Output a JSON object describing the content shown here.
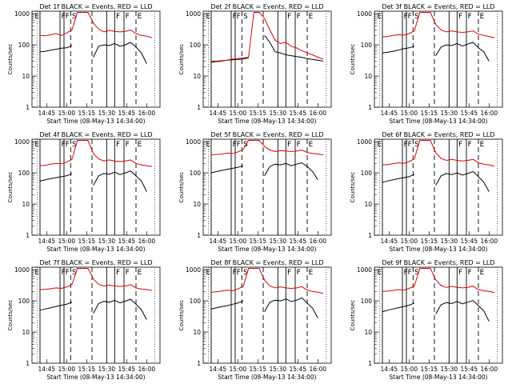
{
  "colors": {
    "events": "#000000",
    "lld": "#e00000",
    "axes": "#000000",
    "background": "#ffffff"
  },
  "shared": {
    "ylabel": "Counts/sec",
    "xlabel": "Start Time (08-May-13 14:34:00)",
    "x_ticks": [
      "14:45",
      "15:00",
      "15:15",
      "15:30",
      "15:45",
      "16:00"
    ],
    "y_ticks": [
      "1",
      "10",
      "100",
      "1000"
    ],
    "y_scale": "log",
    "ylim": [
      1,
      1200
    ],
    "xlim": [
      "14:34",
      "16:10"
    ],
    "marker_labels": [
      "E",
      "F",
      "F",
      "S",
      "F",
      "F",
      "E"
    ]
  },
  "chart_data": [
    {
      "type": "line",
      "title": "Det 1f BLACK = Events, RED = LLD",
      "x": [
        "14:40",
        "14:44",
        "14:48",
        "14:52",
        "14:56",
        "15:00",
        "15:04",
        "15:08",
        "15:12",
        "15:16",
        "15:20",
        "15:24",
        "15:28",
        "15:32",
        "15:36",
        "15:40",
        "15:44",
        "15:48",
        "15:52",
        "15:56",
        "16:00",
        "16:04"
      ],
      "series": [
        {
          "name": "BLACK = Events",
          "values": [
            60,
            62,
            68,
            72,
            78,
            80,
            95,
            null,
            null,
            null,
            40,
            90,
            100,
            95,
            110,
            90,
            100,
            120,
            85,
            55,
            25,
            null
          ]
        },
        {
          "name": "RED = LLD",
          "values": [
            200,
            195,
            210,
            230,
            200,
            240,
            300,
            1100,
            1100,
            1100,
            500,
            320,
            260,
            290,
            270,
            260,
            270,
            300,
            230,
            200,
            190,
            170
          ]
        }
      ]
    },
    {
      "type": "line",
      "title": "Det 2f BLACK = Events, RED = LLD",
      "x": [
        "14:40",
        "14:44",
        "14:48",
        "14:52",
        "14:56",
        "15:00",
        "15:04",
        "15:08",
        "15:12",
        "15:16",
        "15:20",
        "15:24",
        "15:28",
        "15:32",
        "15:36",
        "15:40",
        "15:44",
        "15:48",
        "15:52",
        "15:56",
        "16:00",
        "16:04"
      ],
      "series": [
        {
          "name": "BLACK = Events",
          "values": [
            28,
            29,
            30,
            32,
            33,
            34,
            35,
            38,
            null,
            null,
            200,
            120,
            60,
            55,
            48,
            45,
            42,
            40,
            36,
            34,
            32,
            30
          ]
        },
        {
          "name": "RED = LLD",
          "values": [
            30,
            30,
            31,
            32,
            35,
            36,
            38,
            40,
            1100,
            1100,
            700,
            300,
            140,
            110,
            120,
            90,
            80,
            65,
            55,
            48,
            40,
            35
          ]
        }
      ]
    },
    {
      "type": "line",
      "title": "Det 3f BLACK = Events, RED = LLD",
      "x": [
        "14:40",
        "14:44",
        "14:48",
        "14:52",
        "14:56",
        "15:00",
        "15:04",
        "15:08",
        "15:12",
        "15:16",
        "15:20",
        "15:24",
        "15:28",
        "15:32",
        "15:36",
        "15:40",
        "15:44",
        "15:48",
        "15:52",
        "15:56",
        "16:00",
        "16:04"
      ],
      "series": [
        {
          "name": "BLACK = Events",
          "values": [
            55,
            58,
            62,
            68,
            75,
            80,
            90,
            null,
            null,
            null,
            45,
            85,
            100,
            95,
            110,
            92,
            105,
            120,
            80,
            60,
            30,
            null
          ]
        },
        {
          "name": "RED = LLD",
          "values": [
            180,
            185,
            200,
            210,
            205,
            230,
            280,
            1100,
            1100,
            1100,
            450,
            300,
            260,
            280,
            260,
            250,
            260,
            280,
            220,
            200,
            185,
            170
          ]
        }
      ]
    },
    {
      "type": "line",
      "title": "Det 4f BLACK = Events, RED = LLD",
      "x": [
        "14:40",
        "14:44",
        "14:48",
        "14:52",
        "14:56",
        "15:00",
        "15:04",
        "15:08",
        "15:12",
        "15:16",
        "15:20",
        "15:24",
        "15:28",
        "15:32",
        "15:36",
        "15:40",
        "15:44",
        "15:48",
        "15:52",
        "15:56",
        "16:00",
        "16:04"
      ],
      "series": [
        {
          "name": "BLACK = Events",
          "values": [
            55,
            60,
            65,
            70,
            75,
            80,
            95,
            null,
            null,
            null,
            40,
            80,
            95,
            90,
            105,
            88,
            100,
            115,
            80,
            55,
            25,
            null
          ]
        },
        {
          "name": "RED = LLD",
          "values": [
            170,
            175,
            190,
            200,
            195,
            220,
            270,
            1100,
            1100,
            1100,
            420,
            280,
            240,
            260,
            240,
            230,
            240,
            260,
            200,
            180,
            170,
            160
          ]
        }
      ]
    },
    {
      "type": "line",
      "title": "Det 5f BLACK = Events, RED = LLD",
      "x": [
        "14:40",
        "14:44",
        "14:48",
        "14:52",
        "14:56",
        "15:00",
        "15:04",
        "15:08",
        "15:12",
        "15:16",
        "15:20",
        "15:24",
        "15:28",
        "15:32",
        "15:36",
        "15:40",
        "15:44",
        "15:48",
        "15:52",
        "15:56",
        "16:00",
        "16:04"
      ],
      "series": [
        {
          "name": "BLACK = Events",
          "values": [
            100,
            110,
            120,
            130,
            140,
            150,
            170,
            null,
            null,
            null,
            80,
            160,
            190,
            180,
            200,
            170,
            190,
            210,
            160,
            110,
            60,
            null
          ]
        },
        {
          "name": "RED = LLD",
          "values": [
            380,
            390,
            400,
            430,
            420,
            470,
            560,
            1100,
            1100,
            1100,
            700,
            540,
            480,
            520,
            500,
            480,
            500,
            540,
            450,
            420,
            400,
            380
          ]
        }
      ]
    },
    {
      "type": "line",
      "title": "Det 6f BLACK = Events, RED = LLD",
      "x": [
        "14:40",
        "14:44",
        "14:48",
        "14:52",
        "14:56",
        "15:00",
        "15:04",
        "15:08",
        "15:12",
        "15:16",
        "15:20",
        "15:24",
        "15:28",
        "15:32",
        "15:36",
        "15:40",
        "15:44",
        "15:48",
        "15:52",
        "15:56",
        "16:00",
        "16:04"
      ],
      "series": [
        {
          "name": "BLACK = Events",
          "values": [
            50,
            55,
            60,
            65,
            70,
            75,
            90,
            null,
            null,
            null,
            40,
            80,
            95,
            88,
            100,
            85,
            95,
            110,
            75,
            50,
            25,
            null
          ]
        },
        {
          "name": "RED = LLD",
          "values": [
            180,
            185,
            195,
            210,
            200,
            230,
            280,
            1100,
            1100,
            1100,
            440,
            290,
            250,
            270,
            250,
            240,
            250,
            270,
            210,
            190,
            180,
            165
          ]
        }
      ]
    },
    {
      "type": "line",
      "title": "Det 7f BLACK = Events, RED = LLD",
      "x": [
        "14:40",
        "14:44",
        "14:48",
        "14:52",
        "14:56",
        "15:00",
        "15:04",
        "15:08",
        "15:12",
        "15:16",
        "15:20",
        "15:24",
        "15:28",
        "15:32",
        "15:36",
        "15:40",
        "15:44",
        "15:48",
        "15:52",
        "15:56",
        "16:00",
        "16:04"
      ],
      "series": [
        {
          "name": "BLACK = Events",
          "values": [
            50,
            55,
            60,
            66,
            72,
            78,
            92,
            null,
            null,
            null,
            40,
            82,
            96,
            90,
            104,
            86,
            98,
            112,
            78,
            52,
            25,
            null
          ]
        },
        {
          "name": "RED = LLD",
          "values": [
            230,
            235,
            245,
            260,
            250,
            280,
            330,
            1100,
            1100,
            1100,
            500,
            340,
            300,
            320,
            300,
            290,
            300,
            330,
            260,
            240,
            230,
            215
          ]
        }
      ]
    },
    {
      "type": "line",
      "title": "Det 8f BLACK = Events, RED = LLD",
      "x": [
        "14:40",
        "14:44",
        "14:48",
        "14:52",
        "14:56",
        "15:00",
        "15:04",
        "15:08",
        "15:12",
        "15:16",
        "15:20",
        "15:24",
        "15:28",
        "15:32",
        "15:36",
        "15:40",
        "15:44",
        "15:48",
        "15:52",
        "15:56",
        "16:00",
        "16:04"
      ],
      "series": [
        {
          "name": "BLACK = Events",
          "values": [
            55,
            60,
            65,
            70,
            78,
            85,
            100,
            null,
            null,
            null,
            45,
            90,
            105,
            100,
            115,
            95,
            105,
            125,
            85,
            58,
            28,
            null
          ]
        },
        {
          "name": "RED = LLD",
          "values": [
            190,
            195,
            205,
            220,
            210,
            240,
            290,
            1100,
            1100,
            1100,
            460,
            300,
            260,
            280,
            260,
            250,
            260,
            285,
            220,
            200,
            190,
            175
          ]
        }
      ]
    },
    {
      "type": "line",
      "title": "Det 9f BLACK = Events, RED = LLD",
      "x": [
        "14:40",
        "14:44",
        "14:48",
        "14:52",
        "14:56",
        "15:00",
        "15:04",
        "15:08",
        "15:12",
        "15:16",
        "15:20",
        "15:24",
        "15:28",
        "15:32",
        "15:36",
        "15:40",
        "15:44",
        "15:48",
        "15:52",
        "15:56",
        "16:00",
        "16:04"
      ],
      "series": [
        {
          "name": "BLACK = Events",
          "values": [
            45,
            50,
            55,
            60,
            66,
            72,
            85,
            null,
            null,
            null,
            38,
            75,
            88,
            82,
            95,
            80,
            90,
            102,
            70,
            48,
            22,
            null
          ]
        },
        {
          "name": "RED = LLD",
          "values": [
            200,
            205,
            215,
            230,
            220,
            250,
            300,
            1100,
            1100,
            1100,
            470,
            310,
            270,
            290,
            270,
            260,
            270,
            295,
            230,
            210,
            200,
            185
          ]
        }
      ]
    }
  ]
}
